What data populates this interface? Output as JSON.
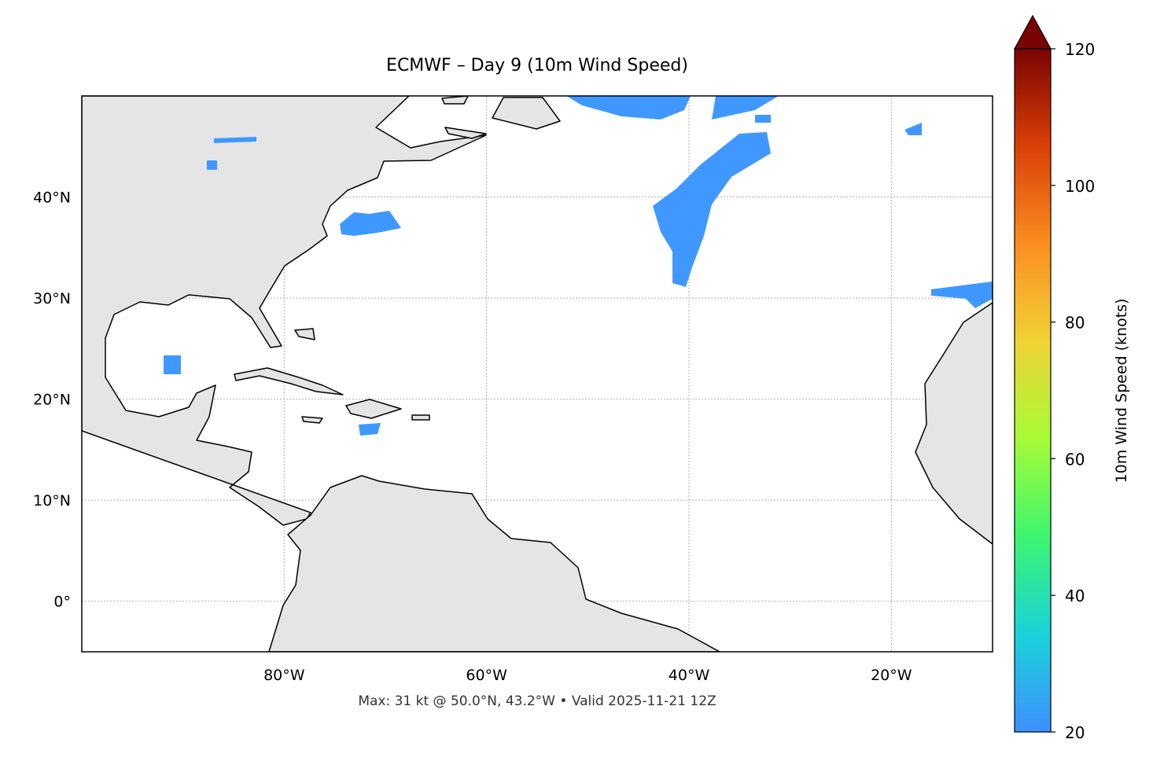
{
  "chart_data": {
    "type": "map",
    "title": "ECMWF – Day 9 (10m Wind Speed)",
    "annotation": "Max: 31 kt @ 50.0°N, 43.2°W • Valid 2025-11-21 12Z",
    "xlim": [
      -100,
      -10
    ],
    "ylim": [
      -5,
      50
    ],
    "xticks": [
      {
        "value": -80,
        "label": "80°W"
      },
      {
        "value": -60,
        "label": "60°W"
      },
      {
        "value": -40,
        "label": "40°W"
      },
      {
        "value": -20,
        "label": "20°W"
      }
    ],
    "yticks": [
      {
        "value": 0,
        "label": "0°"
      },
      {
        "value": 10,
        "label": "10°N"
      },
      {
        "value": 20,
        "label": "20°N"
      },
      {
        "value": 30,
        "label": "30°N"
      },
      {
        "value": 40,
        "label": "40°N"
      }
    ],
    "grid": true,
    "colorbar": {
      "label": "10m Wind Speed (knots)",
      "lim": [
        20,
        120
      ],
      "ticks": [
        20,
        40,
        60,
        80,
        100,
        120
      ],
      "colors": [
        "#3f8fff",
        "#1ad2d9",
        "#3cf56f",
        "#a6fb37",
        "#f0d235",
        "#fb8e22",
        "#d93f06",
        "#7a0403"
      ]
    }
  }
}
